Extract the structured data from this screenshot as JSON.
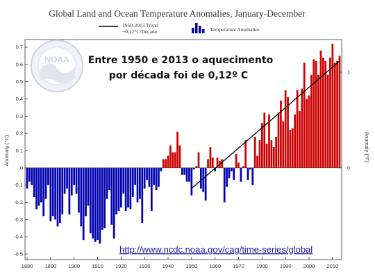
{
  "chart_data": {
    "type": "bar",
    "title": "Global Land and Ocean Temperature Anomalies, January-December",
    "ylabel": "Anomaly (°C)",
    "ylabel_right": "Anomaly (°F)",
    "xlim": [
      1880,
      2013
    ],
    "ylim": [
      -0.5,
      0.7
    ],
    "y_ticks": [
      "-0.5",
      "-0.4",
      "-0.3",
      "-0.2",
      "-0.1",
      "0",
      "0.1",
      "0.2",
      "0.3",
      "0.4",
      "0.5",
      "0.6",
      "0.7"
    ],
    "y_tick_values": [
      -0.5,
      -0.4,
      -0.3,
      -0.2,
      -0.1,
      0,
      0.1,
      0.2,
      0.3,
      0.4,
      0.5,
      0.6,
      0.7
    ],
    "y_ticks_right": [
      "0",
      "1"
    ],
    "x_ticks": [
      "1880",
      "1890",
      "1900",
      "1910",
      "1920",
      "1930",
      "1940",
      "1950",
      "1960",
      "1970",
      "1980",
      "1990",
      "2000",
      "2010"
    ],
    "x_tick_values": [
      1880,
      1890,
      1900,
      1910,
      1920,
      1930,
      1940,
      1950,
      1960,
      1970,
      1980,
      1990,
      2000,
      2010
    ],
    "legend": {
      "trend_label_1": "1950-2013 Trend",
      "trend_label_2": "+0.12°C/Decade",
      "bars_label": "Temperature Anomalies",
      "placement": "top"
    },
    "annotation_line_1": "Entre 1950 e 2013 o aquecimento",
    "annotation_line_2": "por década foi de 0,12º C",
    "source_url": "http://www.ncdc.noaa.gov/cag/time-series/global",
    "logo_text": "NOAA",
    "colors": {
      "positive": "#cc0000",
      "negative": "#0000b0",
      "trend": "#000000",
      "url": "#1a1aa6"
    },
    "trend": {
      "start_year": 1950,
      "end_year": 2013,
      "start_value": -0.12,
      "end_value": 0.62
    },
    "series": [
      {
        "name": "Temperature Anomalies",
        "x": [
          1880,
          1881,
          1882,
          1883,
          1884,
          1885,
          1886,
          1887,
          1888,
          1889,
          1890,
          1891,
          1892,
          1893,
          1894,
          1895,
          1896,
          1897,
          1898,
          1899,
          1900,
          1901,
          1902,
          1903,
          1904,
          1905,
          1906,
          1907,
          1908,
          1909,
          1910,
          1911,
          1912,
          1913,
          1914,
          1915,
          1916,
          1917,
          1918,
          1919,
          1920,
          1921,
          1922,
          1923,
          1924,
          1925,
          1926,
          1927,
          1928,
          1929,
          1930,
          1931,
          1932,
          1933,
          1934,
          1935,
          1936,
          1937,
          1938,
          1939,
          1940,
          1941,
          1942,
          1943,
          1944,
          1945,
          1946,
          1947,
          1948,
          1949,
          1950,
          1951,
          1952,
          1953,
          1954,
          1955,
          1956,
          1957,
          1958,
          1959,
          1960,
          1961,
          1962,
          1963,
          1964,
          1965,
          1966,
          1967,
          1968,
          1969,
          1970,
          1971,
          1972,
          1973,
          1974,
          1975,
          1976,
          1977,
          1978,
          1979,
          1980,
          1981,
          1982,
          1983,
          1984,
          1985,
          1986,
          1987,
          1988,
          1989,
          1990,
          1991,
          1992,
          1993,
          1994,
          1995,
          1996,
          1997,
          1998,
          1999,
          2000,
          2001,
          2002,
          2003,
          2004,
          2005,
          2006,
          2007,
          2008,
          2009,
          2010,
          2011,
          2012,
          2013
        ],
        "values": [
          -0.12,
          -0.08,
          -0.1,
          -0.17,
          -0.24,
          -0.22,
          -0.2,
          -0.28,
          -0.18,
          -0.1,
          -0.31,
          -0.28,
          -0.3,
          -0.34,
          -0.32,
          -0.27,
          -0.15,
          -0.12,
          -0.27,
          -0.16,
          -0.1,
          -0.15,
          -0.26,
          -0.34,
          -0.42,
          -0.28,
          -0.22,
          -0.38,
          -0.41,
          -0.43,
          -0.42,
          -0.44,
          -0.36,
          -0.35,
          -0.18,
          -0.13,
          -0.33,
          -0.41,
          -0.27,
          -0.25,
          -0.23,
          -0.15,
          -0.25,
          -0.23,
          -0.24,
          -0.17,
          -0.1,
          -0.2,
          -0.18,
          -0.32,
          -0.12,
          -0.07,
          -0.11,
          -0.25,
          -0.1,
          -0.13,
          -0.11,
          -0.02,
          0.05,
          0.05,
          0.07,
          0.13,
          0.09,
          0.09,
          0.21,
          0.13,
          -0.04,
          -0.04,
          -0.08,
          -0.08,
          -0.16,
          -0.01,
          0.01,
          0.09,
          -0.12,
          -0.14,
          -0.19,
          0.05,
          0.12,
          0.06,
          -0.02,
          0.06,
          0.04,
          0.05,
          -0.2,
          -0.11,
          -0.06,
          -0.02,
          -0.07,
          0.08,
          0.03,
          -0.08,
          0.01,
          0.16,
          -0.07,
          -0.01,
          -0.1,
          0.18,
          0.07,
          0.16,
          0.26,
          0.32,
          0.14,
          0.31,
          0.16,
          0.12,
          0.18,
          0.32,
          0.39,
          0.27,
          0.45,
          0.41,
          0.22,
          0.23,
          0.31,
          0.45,
          0.33,
          0.46,
          0.61,
          0.4,
          0.42,
          0.54,
          0.63,
          0.62,
          0.54,
          0.68,
          0.64,
          0.62,
          0.54,
          0.64,
          0.72,
          0.61,
          0.62,
          0.65
        ]
      }
    ]
  }
}
